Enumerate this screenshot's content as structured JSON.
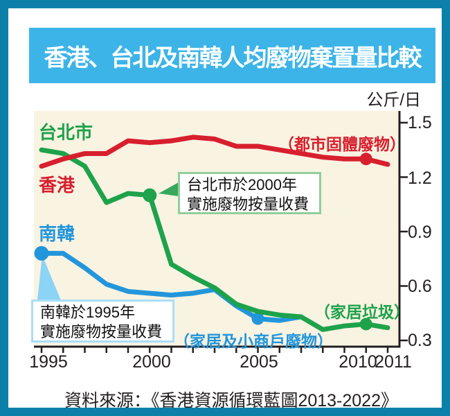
{
  "title": {
    "text": "香港、台北及南韓人均廢物棄置量比較"
  },
  "unit_label": "公斤/日",
  "source": "資料來源：《香港資源循環藍圖2013-2022》",
  "colors": {
    "frame_border": "#0c80a9",
    "title_bar_bg": "#3cb4e8",
    "plot_bg": "#f9f3e2",
    "hk_red": "#d71f2e",
    "taipei_green": "#1ea24b",
    "korea_blue": "#2396db",
    "taipei_callout_border": "#90cf9c",
    "korea_callout_border": "#a9def7",
    "axis": "#231f20"
  },
  "chart_data": {
    "type": "line",
    "title": "香港、台北及南韓人均廢物棄置量比較",
    "ylabel": "公斤/日",
    "xlabel": "",
    "ylim": [
      0.3,
      1.5
    ],
    "yticks": [
      1.5,
      1.2,
      0.9,
      0.6,
      0.3
    ],
    "xticks": [
      1995,
      2000,
      2005,
      2010,
      2011
    ],
    "x_range": [
      1995,
      2011
    ],
    "grid": false,
    "legend_position": "inline-left",
    "series": [
      {
        "key": "hk",
        "name": "香港",
        "sublabel": "（都市固體廢物）",
        "color": "#d71f2e",
        "x": [
          1995,
          1996,
          1997,
          1998,
          1999,
          2000,
          2001,
          2002,
          2003,
          2004,
          2005,
          2006,
          2007,
          2008,
          2009,
          2010,
          2011
        ],
        "values": [
          1.26,
          1.3,
          1.33,
          1.33,
          1.4,
          1.39,
          1.4,
          1.42,
          1.41,
          1.37,
          1.37,
          1.35,
          1.33,
          1.31,
          1.3,
          1.3,
          1.27
        ],
        "marker_years": [
          2010
        ]
      },
      {
        "key": "taipei",
        "name": "台北市",
        "sublabel": "（家居垃圾）",
        "color": "#1ea24b",
        "x": [
          1995,
          1996,
          1997,
          1998,
          1999,
          2000,
          2001,
          2002,
          2003,
          2004,
          2005,
          2006,
          2007,
          2008,
          2009,
          2010,
          2011
        ],
        "values": [
          1.35,
          1.33,
          1.26,
          1.06,
          1.11,
          1.1,
          0.72,
          0.65,
          0.59,
          0.5,
          0.46,
          0.44,
          0.43,
          0.36,
          0.38,
          0.39,
          0.37
        ],
        "marker_years": [
          2000,
          2010
        ]
      },
      {
        "key": "korea",
        "name": "南韓",
        "sublabel": "（家居及小商戶廢物）",
        "color": "#2396db",
        "x": [
          1995,
          1996,
          1997,
          1998,
          1999,
          2000,
          2001,
          2002,
          2003,
          2004,
          2005,
          2006,
          2007
        ],
        "values": [
          0.78,
          0.78,
          0.7,
          0.61,
          0.57,
          0.56,
          0.55,
          0.56,
          0.58,
          0.49,
          0.42,
          0.41,
          0.43
        ],
        "marker_years": [
          1995,
          2005
        ]
      }
    ],
    "annotations": [
      {
        "key": "taipei-2000",
        "text_lines": [
          "台北市於2000年",
          "實施廢物按量收費"
        ],
        "points_to": {
          "series": "台北市",
          "year": 2000
        }
      },
      {
        "key": "korea-1995",
        "text_lines": [
          "南韓於1995年",
          "實施廢物按量收費"
        ],
        "points_to": {
          "series": "南韓",
          "year": 1995
        }
      }
    ]
  }
}
